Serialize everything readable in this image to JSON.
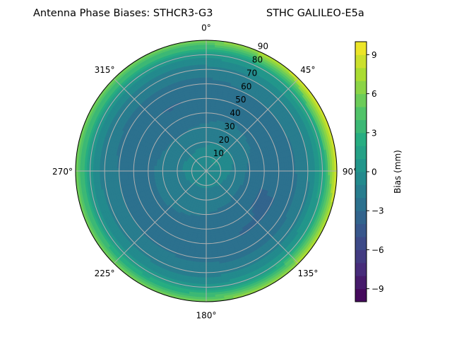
{
  "chart_data": {
    "type": "heatmap",
    "subtype": "polar-contourf",
    "title_left": "Antenna Phase Biases: STHCR3-G3",
    "title_right": "STHC GALILEO-E5a",
    "colorbar_label": "Bias (mm)",
    "colormap": "viridis",
    "color_range": [
      -10,
      10
    ],
    "color_levels_step": 1,
    "colorbar_ticks": [
      "9",
      "6",
      "3",
      "0",
      "−3",
      "−6",
      "−9"
    ],
    "colorbar_tick_values": [
      9,
      6,
      3,
      0,
      -3,
      -6,
      -9
    ],
    "angular_ticks": [
      "0°",
      "45°",
      "90°",
      "135°",
      "180°",
      "225°",
      "270°",
      "315°"
    ],
    "angular_tick_values": [
      0,
      45,
      90,
      135,
      180,
      225,
      270,
      315
    ],
    "radial_ticks": [
      "10",
      "20",
      "30",
      "40",
      "50",
      "60",
      "70",
      "80",
      "90"
    ],
    "radial_tick_values": [
      10,
      20,
      30,
      40,
      50,
      60,
      70,
      80,
      90
    ],
    "radial_range": [
      0,
      90
    ],
    "theta_zero": "north",
    "theta_direction": "clockwise",
    "grid": true,
    "azimuth": [
      0,
      30,
      60,
      90,
      120,
      150,
      180,
      210,
      240,
      270,
      300,
      330
    ],
    "zenith": [
      0,
      10,
      20,
      30,
      40,
      50,
      60,
      70,
      80,
      90
    ],
    "values": [
      [
        -0.3,
        -0.3,
        -0.3,
        -0.3,
        -0.3,
        -0.3,
        -0.3,
        -0.3,
        -0.3,
        -0.3,
        -0.3,
        -0.3
      ],
      [
        -0.5,
        0.1,
        0.1,
        -0.4,
        -0.7,
        -0.8,
        -0.9,
        -0.9,
        -0.8,
        -0.7,
        -0.6,
        -0.6
      ],
      [
        -1.2,
        -0.9,
        -0.9,
        -1.3,
        -1.5,
        -1.6,
        -1.6,
        -1.5,
        -1.3,
        -1.2,
        -1.3,
        -1.3
      ],
      [
        -1.8,
        -1.6,
        -1.7,
        -2.2,
        -2.4,
        -2.2,
        -2.0,
        -1.9,
        -1.8,
        -1.8,
        -1.9,
        -2.0
      ],
      [
        -2.4,
        -2.1,
        -2.4,
        -2.9,
        -3.1,
        -2.7,
        -2.3,
        -2.2,
        -2.1,
        -2.1,
        -2.4,
        -2.6
      ],
      [
        -2.8,
        -2.2,
        -2.3,
        -2.7,
        -3.1,
        -3.1,
        -2.4,
        -2.3,
        -2.2,
        -2.2,
        -2.7,
        -3.1
      ],
      [
        -2.4,
        -2.0,
        -2.0,
        -2.2,
        -2.3,
        -2.4,
        -2.2,
        -2.1,
        -2.0,
        -2.0,
        -2.3,
        -2.4
      ],
      [
        -1.5,
        -1.2,
        -1.2,
        -1.3,
        -1.5,
        -1.6,
        -1.6,
        -1.5,
        -1.5,
        -1.6,
        -1.6,
        -1.5
      ],
      [
        0.3,
        1.0,
        1.5,
        1.5,
        1.2,
        0.8,
        0.5,
        0.3,
        0.5,
        0.5,
        0.5,
        0.3
      ],
      [
        6,
        8,
        9.5,
        9,
        8,
        7,
        6,
        5.5,
        6,
        6,
        6,
        6
      ]
    ]
  }
}
